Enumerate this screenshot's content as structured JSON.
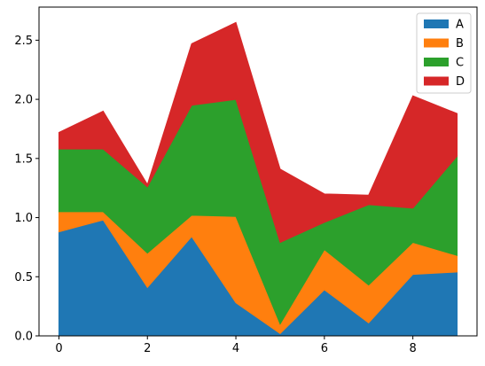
{
  "chart_data": {
    "type": "area",
    "stacked": true,
    "title": "",
    "xlabel": "",
    "ylabel": "",
    "x": [
      0,
      1,
      2,
      3,
      4,
      5,
      6,
      7,
      8,
      9
    ],
    "xlim": [
      -0.45,
      9.45
    ],
    "ylim": [
      0,
      2.78
    ],
    "xticks": [
      0,
      2,
      4,
      6,
      8
    ],
    "xtick_labels": [
      "0",
      "2",
      "4",
      "6",
      "8"
    ],
    "yticks": [
      0.0,
      0.5,
      1.0,
      1.5,
      2.0,
      2.5
    ],
    "ytick_labels": [
      "0.0",
      "0.5",
      "1.0",
      "1.5",
      "2.0",
      "2.5"
    ],
    "grid": false,
    "legend_position": "top-right",
    "series": [
      {
        "name": "A",
        "color": "#1f77b4",
        "values": [
          0.88,
          0.98,
          0.41,
          0.84,
          0.28,
          0.02,
          0.39,
          0.11,
          0.52,
          0.54
        ]
      },
      {
        "name": "B",
        "color": "#ff7f0e",
        "values": [
          0.17,
          0.07,
          0.29,
          0.18,
          0.73,
          0.08,
          0.34,
          0.32,
          0.27,
          0.14
        ]
      },
      {
        "name": "C",
        "color": "#2ca02c",
        "values": [
          0.53,
          0.53,
          0.56,
          0.93,
          0.99,
          0.69,
          0.23,
          0.68,
          0.29,
          0.84
        ]
      },
      {
        "name": "D",
        "color": "#d62728",
        "values": [
          0.14,
          0.32,
          0.02,
          0.52,
          0.65,
          0.62,
          0.24,
          0.08,
          0.95,
          0.36
        ]
      }
    ]
  }
}
